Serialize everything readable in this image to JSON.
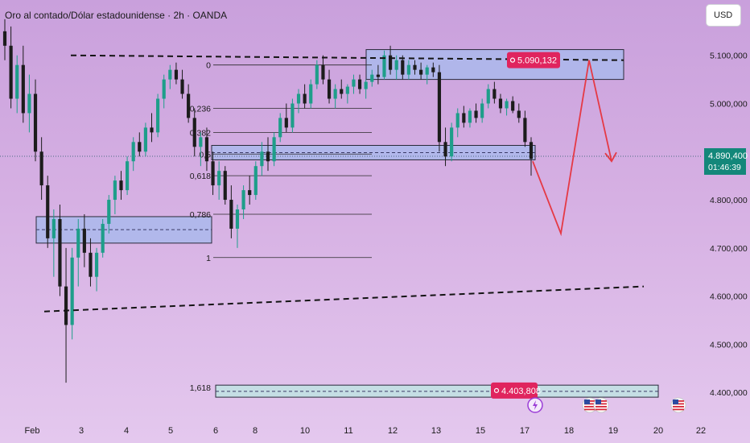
{
  "header": {
    "title": "Oro al contado/Dólar estadounidense · 2h · OANDA",
    "currency_button": "USD"
  },
  "colors": {
    "bull": "#1e9e8a",
    "bear": "#1c1c1c",
    "zone_fill": "#aab9ec",
    "zone_fill_lower": "#bfe3e3",
    "projection": "#e53945",
    "price_label_bg": "#e0245e",
    "current_price_bg": "#13877a"
  },
  "chart_data": {
    "type": "candlestick",
    "symbol": "XAUUSD",
    "timeframe": "2h",
    "x_tick_labels": [
      "Feb",
      "3",
      "4",
      "5",
      "6",
      "8",
      "10",
      "11",
      "12",
      "13",
      "15",
      "17",
      "18",
      "19",
      "20",
      "22"
    ],
    "y_tick_labels": [
      "5.100,000",
      "5.000,000",
      "4.800,000",
      "4.700,000",
      "4.600,000",
      "4.500,000",
      "4.400,000"
    ],
    "y_ticks": [
      5100000,
      5000000,
      4800000,
      4700000,
      4600000,
      4500000,
      4400000
    ],
    "ylim": [
      4345000,
      5215000
    ],
    "grid": false,
    "current_price": {
      "label": "4.890,400",
      "countdown": "01:46:39",
      "value": 4890400
    },
    "fibonacci": {
      "levels": [
        {
          "label": "0",
          "value": 5080000
        },
        {
          "label": "0,236",
          "value": 4990000
        },
        {
          "label": "0,382",
          "value": 4940000
        },
        {
          "label": "0,5",
          "value": 4895000
        },
        {
          "label": "0,618",
          "value": 4850000
        },
        {
          "label": "0,786",
          "value": 4770000
        },
        {
          "label": "1",
          "value": 4680000
        },
        {
          "label": "1,618",
          "value": 4410000
        }
      ]
    },
    "annotations": [
      {
        "type": "price_label",
        "text": "5.090,132",
        "value": 5090132
      },
      {
        "type": "price_label",
        "text": "4.403,808",
        "value": 4403808
      }
    ],
    "zones": [
      {
        "name": "upper_supply",
        "from": 5050000,
        "to": 5112000
      },
      {
        "name": "mid_zone",
        "from": 4883000,
        "to": 4913000
      },
      {
        "name": "left_demand",
        "from": 4710000,
        "to": 4765000
      },
      {
        "name": "lower_target",
        "from": 4390000,
        "to": 4415000
      }
    ],
    "candles": [
      {
        "o": 5150000,
        "h": 5175000,
        "l": 5090000,
        "c": 5120000
      },
      {
        "o": 5120000,
        "h": 5160000,
        "l": 4990000,
        "c": 5010000
      },
      {
        "o": 5010000,
        "h": 5100000,
        "l": 4980000,
        "c": 5080000
      },
      {
        "o": 5080000,
        "h": 5120000,
        "l": 4960000,
        "c": 4980000
      },
      {
        "o": 4980000,
        "h": 5060000,
        "l": 4940000,
        "c": 5020000
      },
      {
        "o": 5020000,
        "h": 5050000,
        "l": 4880000,
        "c": 4900000
      },
      {
        "o": 4900000,
        "h": 4930000,
        "l": 4800000,
        "c": 4830000
      },
      {
        "o": 4830000,
        "h": 4850000,
        "l": 4700000,
        "c": 4720000
      },
      {
        "o": 4720000,
        "h": 4780000,
        "l": 4640000,
        "c": 4760000
      },
      {
        "o": 4760000,
        "h": 4790000,
        "l": 4600000,
        "c": 4620000
      },
      {
        "o": 4620000,
        "h": 4700000,
        "l": 4420000,
        "c": 4540000
      },
      {
        "o": 4540000,
        "h": 4700000,
        "l": 4510000,
        "c": 4680000
      },
      {
        "o": 4680000,
        "h": 4760000,
        "l": 4620000,
        "c": 4740000
      },
      {
        "o": 4740000,
        "h": 4770000,
        "l": 4660000,
        "c": 4690000
      },
      {
        "o": 4690000,
        "h": 4720000,
        "l": 4620000,
        "c": 4640000
      },
      {
        "o": 4640000,
        "h": 4700000,
        "l": 4610000,
        "c": 4690000
      },
      {
        "o": 4690000,
        "h": 4760000,
        "l": 4680000,
        "c": 4750000
      },
      {
        "o": 4750000,
        "h": 4810000,
        "l": 4730000,
        "c": 4800000
      },
      {
        "o": 4800000,
        "h": 4850000,
        "l": 4770000,
        "c": 4840000
      },
      {
        "o": 4840000,
        "h": 4860000,
        "l": 4800000,
        "c": 4820000
      },
      {
        "o": 4820000,
        "h": 4890000,
        "l": 4810000,
        "c": 4880000
      },
      {
        "o": 4880000,
        "h": 4930000,
        "l": 4860000,
        "c": 4920000
      },
      {
        "o": 4920000,
        "h": 4940000,
        "l": 4890000,
        "c": 4900000
      },
      {
        "o": 4900000,
        "h": 4960000,
        "l": 4890000,
        "c": 4950000
      },
      {
        "o": 4950000,
        "h": 4980000,
        "l": 4920000,
        "c": 4940000
      },
      {
        "o": 4940000,
        "h": 5020000,
        "l": 4930000,
        "c": 5010000
      },
      {
        "o": 5010000,
        "h": 5060000,
        "l": 4990000,
        "c": 5050000
      },
      {
        "o": 5050000,
        "h": 5080000,
        "l": 5030000,
        "c": 5070000
      },
      {
        "o": 5070000,
        "h": 5085000,
        "l": 5040000,
        "c": 5050000
      },
      {
        "o": 5050000,
        "h": 5070000,
        "l": 5010000,
        "c": 5020000
      },
      {
        "o": 5020000,
        "h": 5040000,
        "l": 4960000,
        "c": 4970000
      },
      {
        "o": 4970000,
        "h": 4990000,
        "l": 4890000,
        "c": 4910000
      },
      {
        "o": 4910000,
        "h": 4940000,
        "l": 4870000,
        "c": 4930000
      },
      {
        "o": 4930000,
        "h": 4950000,
        "l": 4860000,
        "c": 4880000
      },
      {
        "o": 4880000,
        "h": 4900000,
        "l": 4810000,
        "c": 4830000
      },
      {
        "o": 4830000,
        "h": 4880000,
        "l": 4800000,
        "c": 4860000
      },
      {
        "o": 4860000,
        "h": 4870000,
        "l": 4790000,
        "c": 4800000
      },
      {
        "o": 4800000,
        "h": 4830000,
        "l": 4720000,
        "c": 4740000
      },
      {
        "o": 4740000,
        "h": 4790000,
        "l": 4700000,
        "c": 4780000
      },
      {
        "o": 4780000,
        "h": 4830000,
        "l": 4760000,
        "c": 4820000
      },
      {
        "o": 4820000,
        "h": 4850000,
        "l": 4790000,
        "c": 4810000
      },
      {
        "o": 4810000,
        "h": 4880000,
        "l": 4800000,
        "c": 4870000
      },
      {
        "o": 4870000,
        "h": 4920000,
        "l": 4850000,
        "c": 4900000
      },
      {
        "o": 4900000,
        "h": 4930000,
        "l": 4860000,
        "c": 4880000
      },
      {
        "o": 4880000,
        "h": 4940000,
        "l": 4870000,
        "c": 4930000
      },
      {
        "o": 4930000,
        "h": 4980000,
        "l": 4920000,
        "c": 4970000
      },
      {
        "o": 4970000,
        "h": 5000000,
        "l": 4940000,
        "c": 4950000
      },
      {
        "o": 4950000,
        "h": 5010000,
        "l": 4940000,
        "c": 5000000
      },
      {
        "o": 5000000,
        "h": 5030000,
        "l": 4980000,
        "c": 5020000
      },
      {
        "o": 5020000,
        "h": 5040000,
        "l": 4990000,
        "c": 5000000
      },
      {
        "o": 5000000,
        "h": 5050000,
        "l": 4990000,
        "c": 5040000
      },
      {
        "o": 5040000,
        "h": 5090000,
        "l": 5030000,
        "c": 5080000
      },
      {
        "o": 5080000,
        "h": 5100000,
        "l": 5040000,
        "c": 5050000
      },
      {
        "o": 5050000,
        "h": 5070000,
        "l": 5000000,
        "c": 5010000
      },
      {
        "o": 5010000,
        "h": 5040000,
        "l": 4990000,
        "c": 5030000
      },
      {
        "o": 5030000,
        "h": 5050000,
        "l": 5010000,
        "c": 5020000
      },
      {
        "o": 5020000,
        "h": 5040000,
        "l": 5000000,
        "c": 5035000
      },
      {
        "o": 5035000,
        "h": 5060000,
        "l": 5020000,
        "c": 5050000
      },
      {
        "o": 5050000,
        "h": 5060000,
        "l": 5020000,
        "c": 5030000
      },
      {
        "o": 5030000,
        "h": 5050000,
        "l": 5010000,
        "c": 5045000
      },
      {
        "o": 5045000,
        "h": 5070000,
        "l": 5035000,
        "c": 5060000
      },
      {
        "o": 5060000,
        "h": 5080000,
        "l": 5040000,
        "c": 5055000
      },
      {
        "o": 5055000,
        "h": 5110000,
        "l": 5050000,
        "c": 5100000
      },
      {
        "o": 5100000,
        "h": 5120000,
        "l": 5060000,
        "c": 5070000
      },
      {
        "o": 5070000,
        "h": 5100000,
        "l": 5050000,
        "c": 5090000
      },
      {
        "o": 5090000,
        "h": 5100000,
        "l": 5050000,
        "c": 5060000
      },
      {
        "o": 5060000,
        "h": 5090000,
        "l": 5050000,
        "c": 5080000
      },
      {
        "o": 5080000,
        "h": 5090000,
        "l": 5060000,
        "c": 5070000
      },
      {
        "o": 5070000,
        "h": 5085000,
        "l": 5050000,
        "c": 5060000
      },
      {
        "o": 5060000,
        "h": 5080000,
        "l": 5040000,
        "c": 5075000
      },
      {
        "o": 5075000,
        "h": 5085000,
        "l": 5055000,
        "c": 5065000
      },
      {
        "o": 5065000,
        "h": 5080000,
        "l": 4900000,
        "c": 4920000
      },
      {
        "o": 4920000,
        "h": 4950000,
        "l": 4870000,
        "c": 4890000
      },
      {
        "o": 4890000,
        "h": 4960000,
        "l": 4880000,
        "c": 4950000
      },
      {
        "o": 4950000,
        "h": 4990000,
        "l": 4930000,
        "c": 4980000
      },
      {
        "o": 4980000,
        "h": 4995000,
        "l": 4950000,
        "c": 4960000
      },
      {
        "o": 4960000,
        "h": 4990000,
        "l": 4950000,
        "c": 4985000
      },
      {
        "o": 4985000,
        "h": 5000000,
        "l": 4960000,
        "c": 4970000
      },
      {
        "o": 4970000,
        "h": 5010000,
        "l": 4960000,
        "c": 5000000
      },
      {
        "o": 5000000,
        "h": 5040000,
        "l": 4990000,
        "c": 5030000
      },
      {
        "o": 5030000,
        "h": 5045000,
        "l": 5000000,
        "c": 5010000
      },
      {
        "o": 5010000,
        "h": 5020000,
        "l": 4980000,
        "c": 4990000
      },
      {
        "o": 4990000,
        "h": 5010000,
        "l": 4975000,
        "c": 5005000
      },
      {
        "o": 5005000,
        "h": 5015000,
        "l": 4980000,
        "c": 4985000
      },
      {
        "o": 4985000,
        "h": 5000000,
        "l": 4960000,
        "c": 4970000
      },
      {
        "o": 4970000,
        "h": 4985000,
        "l": 4910000,
        "c": 4920000
      },
      {
        "o": 4920000,
        "h": 4930000,
        "l": 4850000,
        "c": 4885000
      }
    ],
    "support_lines": [
      {
        "name": "upper_dashed_resistance",
        "from_value": 5100000,
        "to_value": 5090000
      },
      {
        "name": "lower_dashed_trendline",
        "from_value": 4568000,
        "to_value": 4620000
      }
    ],
    "projection_path_values": [
      4880000,
      4730000,
      5090000,
      4880000
    ],
    "event_icons": [
      "lightning-event-icon",
      "us-flag-icon",
      "us-flag-icon",
      "us-flag-icon"
    ]
  }
}
